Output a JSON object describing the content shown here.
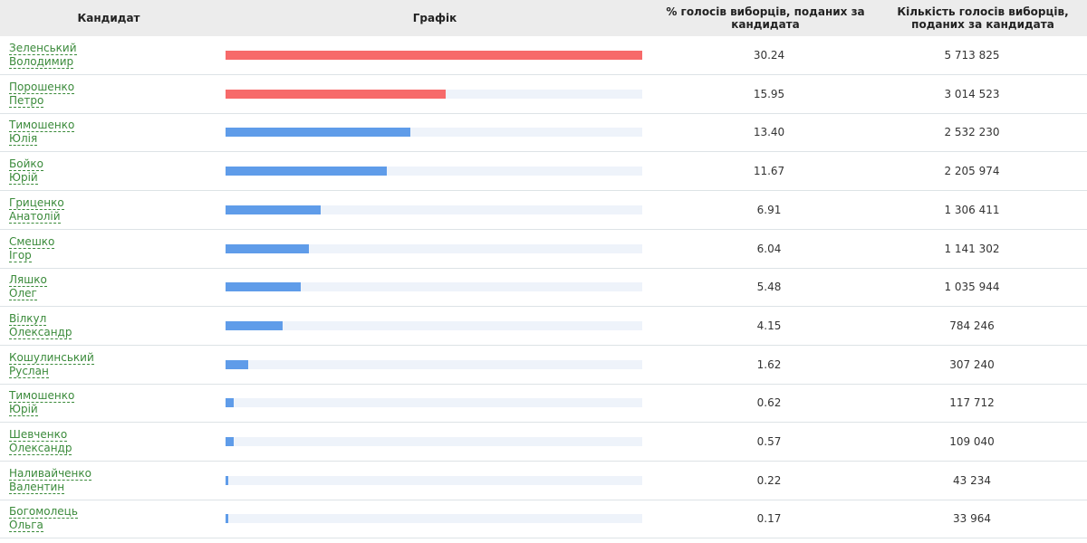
{
  "header": {
    "candidate": "Кандидат",
    "graph": "Графік",
    "percent": "% голосів виборців, поданих за кандидата",
    "votes": "Кількість голосів виборців, поданих за кандидата"
  },
  "rows": [
    {
      "surname": "Зеленський",
      "first_name": "Володимир",
      "percent": "30.24",
      "votes": "5 713 825",
      "color": "#f76a6a"
    },
    {
      "surname": "Порошенко",
      "first_name": "Петро",
      "percent": "15.95",
      "votes": "3 014 523",
      "color": "#f76a6a"
    },
    {
      "surname": "Тимошенко",
      "first_name": "Юлія",
      "percent": "13.40",
      "votes": "2 532 230",
      "color": "#5f9ce9"
    },
    {
      "surname": "Бойко",
      "first_name": "Юрій",
      "percent": "11.67",
      "votes": "2 205 974",
      "color": "#5f9ce9"
    },
    {
      "surname": "Гриценко",
      "first_name": "Анатолій",
      "percent": "6.91",
      "votes": "1 306 411",
      "color": "#5f9ce9"
    },
    {
      "surname": "Смешко",
      "first_name": "Ігор",
      "percent": "6.04",
      "votes": "1 141 302",
      "color": "#5f9ce9"
    },
    {
      "surname": "Ляшко",
      "first_name": "Олег",
      "percent": "5.48",
      "votes": "1 035 944",
      "color": "#5f9ce9"
    },
    {
      "surname": "Вілкул",
      "first_name": "Олександр",
      "percent": "4.15",
      "votes": "784 246",
      "color": "#5f9ce9"
    },
    {
      "surname": "Кошулинський",
      "first_name": "Руслан",
      "percent": "1.62",
      "votes": "307 240",
      "color": "#5f9ce9"
    },
    {
      "surname": "Тимошенко",
      "first_name": "Юрій",
      "percent": "0.62",
      "votes": "117 712",
      "color": "#5f9ce9"
    },
    {
      "surname": "Шевченко",
      "first_name": "Олександр",
      "percent": "0.57",
      "votes": "109 040",
      "color": "#5f9ce9"
    },
    {
      "surname": "Наливайченко",
      "first_name": "Валентин",
      "percent": "0.22",
      "votes": "43 234",
      "color": "#5f9ce9"
    },
    {
      "surname": "Богомолець",
      "first_name": "Ольга",
      "percent": "0.17",
      "votes": "33 964",
      "color": "#5f9ce9"
    }
  ]
}
